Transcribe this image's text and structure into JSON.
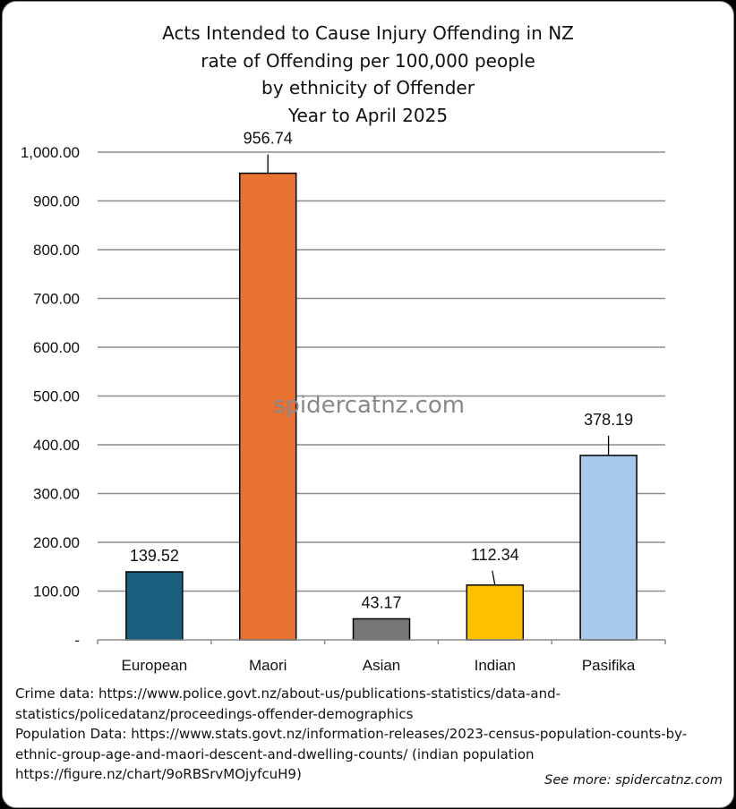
{
  "title_lines": [
    "Acts Intended to Cause Injury Offending in NZ",
    "rate of Offending per 100,000 people",
    "by ethnicity of Offender",
    "Year to April 2025"
  ],
  "watermark": "spidercatnz.com",
  "notes": {
    "lines": [
      "Crime data: https://www.police.govt.nz/about-us/publications-statistics/data-and-",
      "statistics/policedatanz/proceedings-offender-demographics",
      "Population Data: https://www.stats.govt.nz/information-releases/2023-census-population-counts-by-",
      "ethnic-group-age-and-maori-descent-and-dwelling-counts/ (indian population",
      "https://figure.nz/chart/9oRBSrvMOjyfcuH9)"
    ],
    "see_more": "See more: spidercatnz.com"
  },
  "chart_data": {
    "type": "bar",
    "categories": [
      "European",
      "Maori",
      "Asian",
      "Indian",
      "Pasifika"
    ],
    "values": [
      139.52,
      956.74,
      43.17,
      112.34,
      378.19
    ],
    "value_labels": [
      "139.52",
      "956.74",
      "43.17",
      "112.34",
      "378.19"
    ],
    "colors": [
      "#1a5e80",
      "#e97132",
      "#777777",
      "#ffc000",
      "#a9c9ec"
    ],
    "ylim": [
      0,
      1000
    ],
    "yticks": [
      0,
      100,
      200,
      300,
      400,
      500,
      600,
      700,
      800,
      900,
      1000
    ],
    "ytick_labels": [
      "-",
      "100.00",
      "200.00",
      "300.00",
      "400.00",
      "500.00",
      "600.00",
      "700.00",
      "800.00",
      "900.00",
      "1,000.00"
    ],
    "grid": true,
    "legend": "none"
  }
}
